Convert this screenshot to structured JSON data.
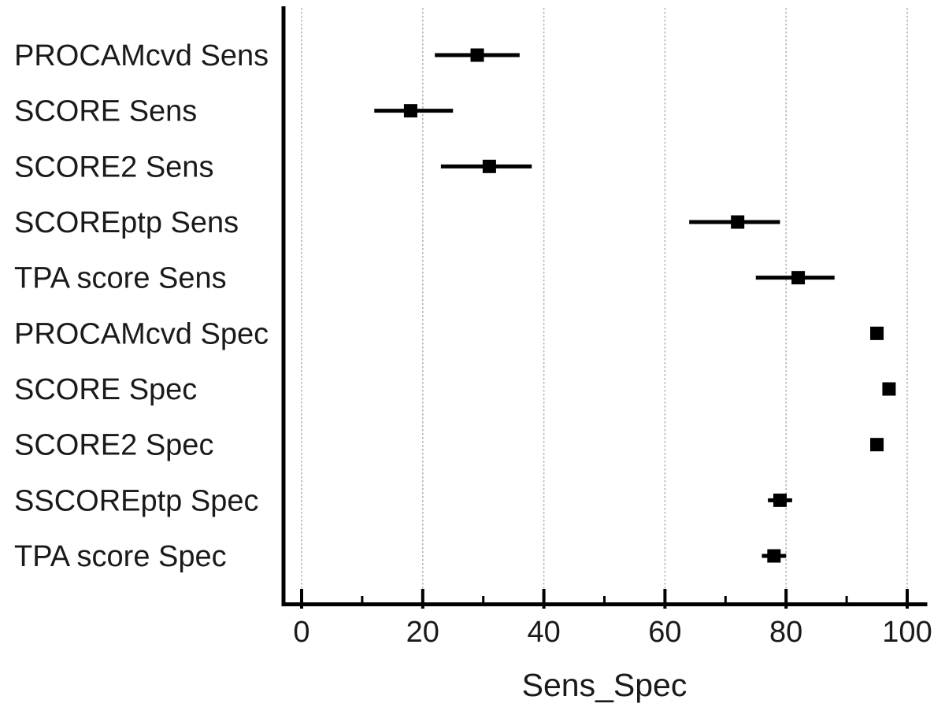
{
  "chart_data": {
    "type": "scatter",
    "subtype": "horizontal-dot-plot-with-error-bars",
    "title": "",
    "xlabel": "Sens_Spec",
    "ylabel": "",
    "xlim": [
      0,
      100
    ],
    "x_major_ticks": [
      0,
      20,
      40,
      60,
      80,
      100
    ],
    "x_minor_ticks": [
      10,
      30,
      50,
      70,
      90
    ],
    "grid": "vertical dashed gridlines at major ticks",
    "legend": "none",
    "marker": "filled-square",
    "categories": [
      "PROCAMcvd Sens",
      "SCORE Sens",
      "SCORE2 Sens",
      "SCOREptp Sens",
      "TPA score Sens",
      "PROCAMcvd Spec",
      "SCORE Spec",
      "SCORE2 Spec",
      "SSCOREptp Spec",
      "TPA score Spec"
    ],
    "points": [
      {
        "label": "PROCAMcvd Sens",
        "value": 29,
        "ci_low": 22,
        "ci_high": 36
      },
      {
        "label": "SCORE Sens",
        "value": 18,
        "ci_low": 12,
        "ci_high": 25
      },
      {
        "label": "SCORE2 Sens",
        "value": 31,
        "ci_low": 23,
        "ci_high": 38
      },
      {
        "label": "SCOREptp Sens",
        "value": 72,
        "ci_low": 64,
        "ci_high": 79
      },
      {
        "label": "TPA score Sens",
        "value": 82,
        "ci_low": 75,
        "ci_high": 88
      },
      {
        "label": "PROCAMcvd Spec",
        "value": 95,
        "ci_low": 94,
        "ci_high": 96
      },
      {
        "label": "SCORE Spec",
        "value": 97,
        "ci_low": 96,
        "ci_high": 98
      },
      {
        "label": "SCORE2 Spec",
        "value": 95,
        "ci_low": 94,
        "ci_high": 96
      },
      {
        "label": "SSCOREptp Spec",
        "value": 79,
        "ci_low": 77,
        "ci_high": 81
      },
      {
        "label": "TPA score Spec",
        "value": 78,
        "ci_low": 76,
        "ci_high": 80
      }
    ],
    "colors": {
      "background": "#ffffff",
      "marker": "#000000",
      "error_bar": "#000000",
      "axis": "#000000",
      "gridline": "#b5b5b5",
      "text": "#1a1a1a"
    }
  }
}
